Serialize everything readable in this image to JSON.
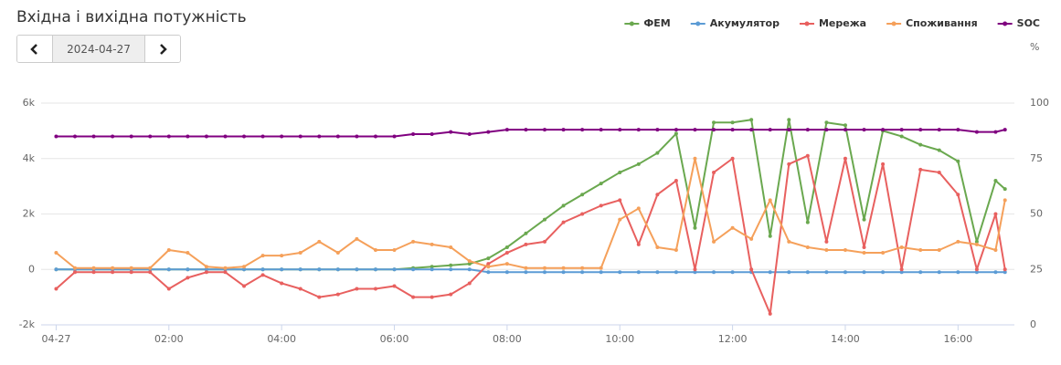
{
  "header": {
    "title": "Вхідна і вихідна потужність"
  },
  "date_picker": {
    "value": "2024-04-27"
  },
  "chart_data": {
    "type": "line",
    "x": [
      0,
      20,
      40,
      60,
      80,
      100,
      120,
      140,
      160,
      180,
      200,
      220,
      240,
      260,
      280,
      300,
      320,
      340,
      360,
      380,
      400,
      420,
      440,
      460,
      480,
      500,
      520,
      540,
      560,
      580,
      600,
      620,
      640,
      660,
      680,
      700,
      720,
      740,
      760,
      780,
      800,
      820,
      840,
      860,
      880,
      900,
      920,
      940,
      960,
      980,
      1000,
      1010
    ],
    "xlim": [
      -16,
      1020
    ],
    "xticks": [
      {
        "value": 0,
        "label": "04-27"
      },
      {
        "value": 120,
        "label": "02:00"
      },
      {
        "value": 240,
        "label": "04:00"
      },
      {
        "value": 360,
        "label": "06:00"
      },
      {
        "value": 480,
        "label": "08:00"
      },
      {
        "value": 600,
        "label": "10:00"
      },
      {
        "value": 720,
        "label": "12:00"
      },
      {
        "value": 840,
        "label": "14:00"
      },
      {
        "value": 960,
        "label": "16:00"
      }
    ],
    "ylim": [
      -2000,
      6000
    ],
    "yticks": [
      {
        "value": -2000,
        "label": "-2k"
      },
      0,
      {
        "value": 2000,
        "label": "2k"
      },
      {
        "value": 4000,
        "label": "4k"
      },
      {
        "value": 6000,
        "label": "6k"
      }
    ],
    "y2lim": [
      0,
      100
    ],
    "y2ticks": [
      0,
      25,
      50,
      75,
      100
    ],
    "y2label": "%",
    "grid": true,
    "legend": "top-right",
    "series": [
      {
        "name": "ФЕМ",
        "color": "#6aa84f",
        "values": [
          0,
          0,
          0,
          0,
          0,
          0,
          0,
          0,
          0,
          0,
          0,
          0,
          0,
          0,
          0,
          0,
          0,
          0,
          0,
          50,
          100,
          150,
          200,
          400,
          800,
          1300,
          1800,
          2300,
          2700,
          3100,
          3500,
          3800,
          4200,
          4900,
          1500,
          5300,
          5300,
          5400,
          1200,
          5400,
          1700,
          5300,
          5200,
          1800,
          5000,
          4800,
          4500,
          4300,
          3900,
          1000,
          3200,
          2900
        ]
      },
      {
        "name": "Акумулятор",
        "color": "#5b9bd5",
        "values": [
          0,
          0,
          0,
          0,
          0,
          0,
          0,
          0,
          0,
          0,
          0,
          0,
          0,
          0,
          0,
          0,
          0,
          0,
          0,
          0,
          0,
          0,
          0,
          -100,
          -100,
          -100,
          -100,
          -100,
          -100,
          -100,
          -100,
          -100,
          -100,
          -100,
          -100,
          -100,
          -100,
          -100,
          -100,
          -100,
          -100,
          -100,
          -100,
          -100,
          -100,
          -100,
          -100,
          -100,
          -100,
          -100,
          -100,
          -100
        ]
      },
      {
        "name": "Мережа",
        "color": "#e8605f",
        "values": [
          -700,
          -100,
          -100,
          -100,
          -100,
          -100,
          -700,
          -300,
          -100,
          -100,
          -600,
          -200,
          -500,
          -700,
          -1000,
          -900,
          -700,
          -700,
          -600,
          -1000,
          -1000,
          -900,
          -500,
          200,
          600,
          900,
          1000,
          1700,
          2000,
          2300,
          2500,
          900,
          2700,
          3200,
          0,
          3500,
          4000,
          0,
          -1600,
          3800,
          4100,
          1000,
          4000,
          800,
          3800,
          0,
          3600,
          3500,
          2700,
          0,
          2000,
          0
        ]
      },
      {
        "name": "Споживання",
        "color": "#f5a05a",
        "values": [
          600,
          50,
          50,
          50,
          50,
          50,
          700,
          600,
          100,
          50,
          100,
          500,
          500,
          600,
          1000,
          600,
          1100,
          700,
          700,
          1000,
          900,
          800,
          300,
          100,
          200,
          50,
          50,
          50,
          50,
          50,
          1800,
          2200,
          800,
          700,
          4000,
          1000,
          1500,
          1100,
          2500,
          1000,
          800,
          700,
          700,
          600,
          600,
          800,
          700,
          700,
          1000,
          900,
          700,
          2500
        ]
      },
      {
        "name": "SOC",
        "color": "#800080",
        "axis": "y2",
        "values": [
          85,
          85,
          85,
          85,
          85,
          85,
          85,
          85,
          85,
          85,
          85,
          85,
          85,
          85,
          85,
          85,
          85,
          85,
          85,
          86,
          86,
          87,
          86,
          87,
          88,
          88,
          88,
          88,
          88,
          88,
          88,
          88,
          88,
          88,
          88,
          88,
          88,
          88,
          88,
          88,
          88,
          88,
          88,
          88,
          88,
          88,
          88,
          88,
          88,
          87,
          87,
          88
        ]
      }
    ]
  }
}
